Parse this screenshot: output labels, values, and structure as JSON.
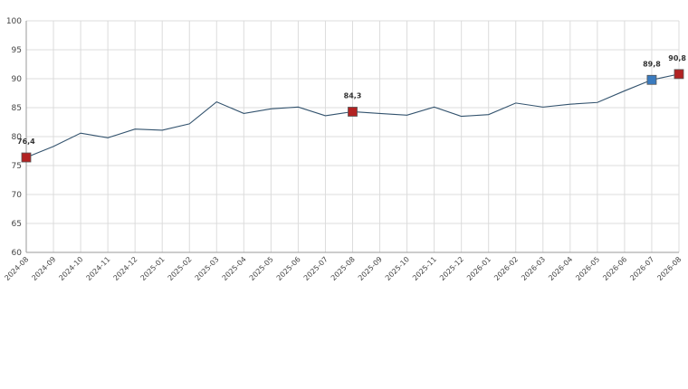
{
  "chart_data": {
    "type": "line",
    "title": "",
    "xlabel": "",
    "ylabel": "",
    "ylim": [
      60,
      100
    ],
    "yticks": [
      "60",
      "65",
      "70",
      "75",
      "80",
      "85",
      "90",
      "95",
      "100"
    ],
    "grid": true,
    "legend": "none",
    "x": [
      "2024-08",
      "2024-09",
      "2024-10",
      "2024-11",
      "2024-12",
      "2025-01",
      "2025-02",
      "2025-03",
      "2025-04",
      "2025-05",
      "2025-06",
      "2025-07",
      "2025-08",
      "2025-09",
      "2025-10",
      "2025-11",
      "2025-12",
      "2026-01",
      "2026-02",
      "2026-03",
      "2026-04",
      "2026-05",
      "2026-06",
      "2026-07",
      "2026-08"
    ],
    "series": [
      {
        "values": [
          76.4,
          78.3,
          80.6,
          79.8,
          81.3,
          81.1,
          82.2,
          86.0,
          84.0,
          84.8,
          85.1,
          83.6,
          84.3,
          84.0,
          83.7,
          85.1,
          83.5,
          83.8,
          85.8,
          85.1,
          85.6,
          85.9,
          87.9,
          89.8,
          90.8
        ],
        "color": "#33536e"
      }
    ],
    "markers": [
      {
        "index": 0,
        "label": "76,4",
        "color": "#b22222"
      },
      {
        "index": 12,
        "label": "84,3",
        "color": "#b22222"
      },
      {
        "index": 23,
        "label": "89,8",
        "color": "#3a7bbf"
      },
      {
        "index": 24,
        "label": "90,8",
        "color": "#b22222"
      }
    ]
  }
}
